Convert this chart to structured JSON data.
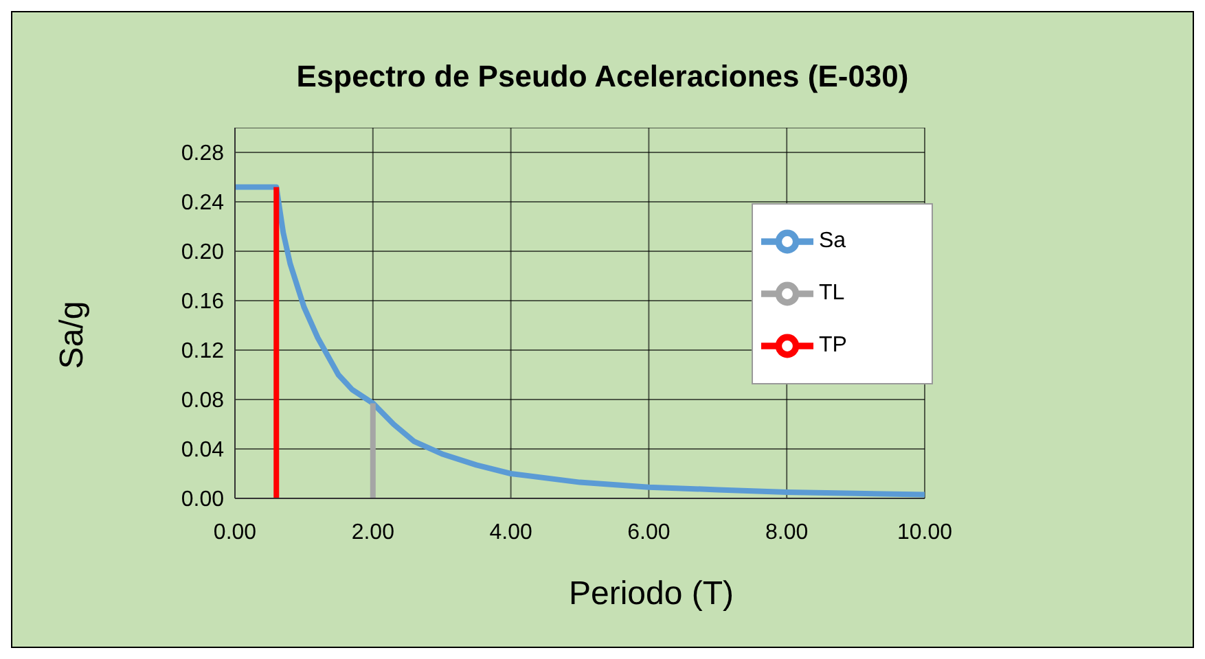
{
  "chart_data": {
    "type": "line",
    "title": "Espectro de Pseudo Aceleraciones (E-030)",
    "xlabel": "Periodo (T)",
    "ylabel": "Sa/g",
    "xlim": [
      0,
      10
    ],
    "xticks": [
      {
        "value": 0,
        "label": "0.00"
      },
      {
        "value": 2,
        "label": "2.00"
      },
      {
        "value": 4,
        "label": "4.00"
      },
      {
        "value": 6,
        "label": "6.00"
      },
      {
        "value": 8,
        "label": "8.00"
      },
      {
        "value": 10,
        "label": "10.00"
      }
    ],
    "ylim": [
      0,
      0.3
    ],
    "yticks": [
      {
        "value": 0,
        "label": "0.00"
      },
      {
        "value": 0.04,
        "label": "0.04"
      },
      {
        "value": 0.08,
        "label": "0.08"
      },
      {
        "value": 0.12,
        "label": "0.12"
      },
      {
        "value": 0.16,
        "label": "0.16"
      },
      {
        "value": 0.2,
        "label": "0.20"
      },
      {
        "value": 0.24,
        "label": "0.24"
      },
      {
        "value": 0.28,
        "label": "0.28"
      }
    ],
    "grid": true,
    "legend": "top right",
    "marker": "none",
    "line_style": "solid",
    "series": [
      {
        "name": "Sa",
        "color": "#5b9bd5",
        "x": [
          0,
          0.6,
          0.7,
          0.8,
          1.0,
          1.2,
          1.5,
          1.7,
          2.0,
          2.3,
          2.6,
          3.0,
          3.5,
          4,
          5,
          6,
          7,
          8,
          9,
          10
        ],
        "values": [
          0.252,
          0.252,
          0.215,
          0.19,
          0.155,
          0.13,
          0.1,
          0.088,
          0.077,
          0.06,
          0.046,
          0.036,
          0.027,
          0.02,
          0.013,
          0.009,
          0.007,
          0.005,
          0.004,
          0.003
        ]
      },
      {
        "name": "TP",
        "color": "#ff0000",
        "x": [
          0.6,
          0.6
        ],
        "values": [
          0,
          0.252
        ]
      },
      {
        "name": "TL",
        "color": "#a5a5a5",
        "x": [
          2.0,
          2.0
        ],
        "values": [
          0,
          0.077
        ]
      }
    ]
  }
}
